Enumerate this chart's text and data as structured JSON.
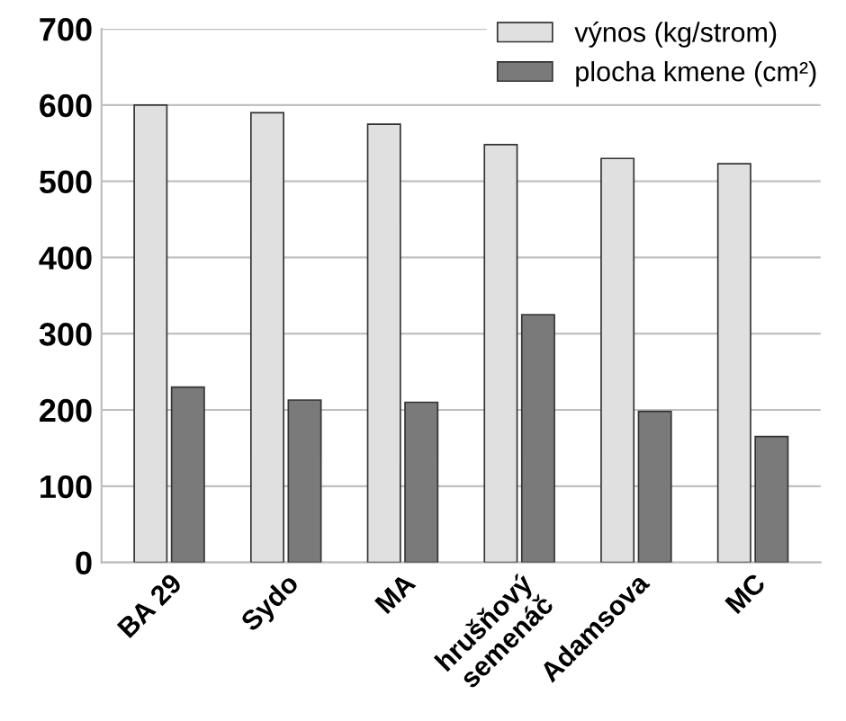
{
  "chart_data": {
    "type": "bar",
    "categories": [
      "BA 29",
      "Sydo",
      "MA",
      "hrušňový\nsemenáč",
      "Adamsova",
      "MC"
    ],
    "series": [
      {
        "name": "výnos (kg/strom)",
        "color": "#e0e0e0",
        "values": [
          600,
          590,
          575,
          548,
          530,
          523
        ]
      },
      {
        "name": "plocha kmene (cm²)",
        "color": "#7a7a7a",
        "values": [
          230,
          213,
          210,
          325,
          198,
          165
        ]
      }
    ],
    "ylim": [
      0,
      700
    ],
    "yticks": [
      0,
      100,
      200,
      300,
      400,
      500,
      600,
      700
    ],
    "grid": "y",
    "legend": "top right"
  }
}
